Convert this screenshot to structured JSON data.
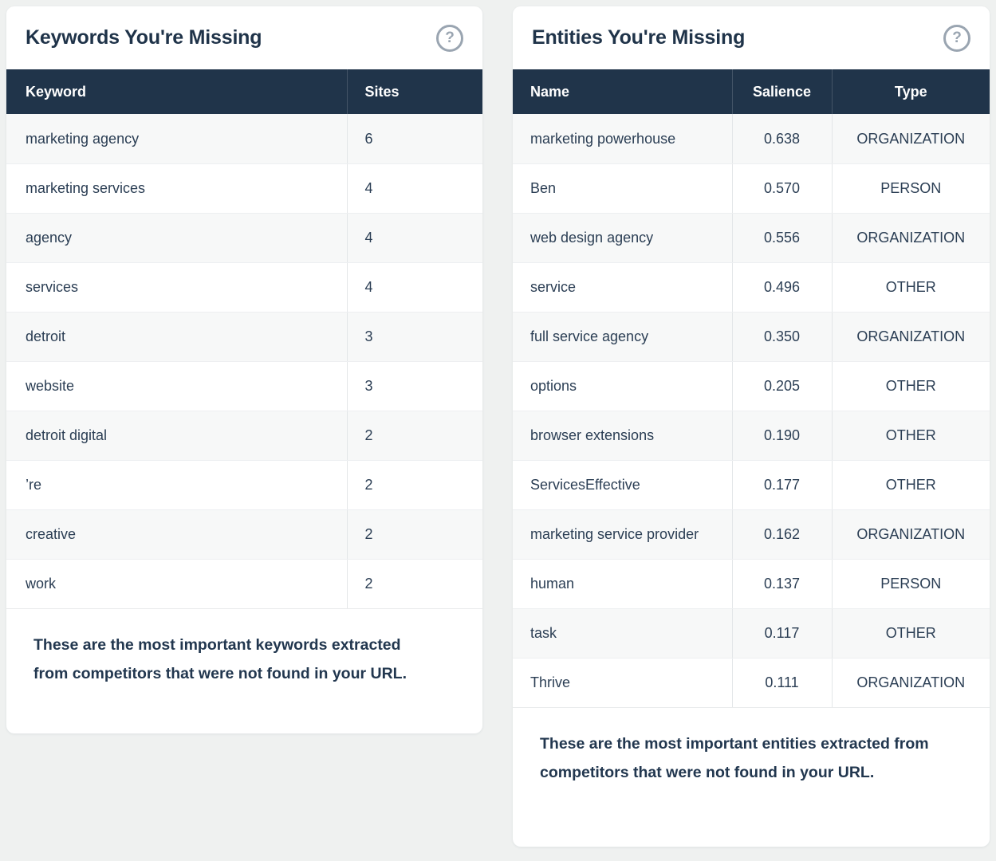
{
  "page": {
    "background_color": "#eff1f0",
    "header_bg_color": "#20344a",
    "title_color": "#1f3349",
    "help_glyph": "?"
  },
  "keywords_card": {
    "title": "Keywords You're Missing",
    "columns": {
      "keyword": "Keyword",
      "sites": "Sites"
    },
    "rows": [
      {
        "keyword": "marketing agency",
        "sites": "6"
      },
      {
        "keyword": "marketing services",
        "sites": "4"
      },
      {
        "keyword": "agency",
        "sites": "4"
      },
      {
        "keyword": "services",
        "sites": "4"
      },
      {
        "keyword": "detroit",
        "sites": "3"
      },
      {
        "keyword": "website",
        "sites": "3"
      },
      {
        "keyword": "detroit digital",
        "sites": "2"
      },
      {
        "keyword": "’re",
        "sites": "2"
      },
      {
        "keyword": "creative",
        "sites": "2"
      },
      {
        "keyword": "work",
        "sites": "2"
      }
    ],
    "footer": "These are the most important keywords extracted from competitors that were not found in your URL."
  },
  "entities_card": {
    "title": "Entities You're Missing",
    "columns": {
      "name": "Name",
      "salience": "Salience",
      "type": "Type"
    },
    "rows": [
      {
        "name": "marketing powerhouse",
        "salience": "0.638",
        "type": "ORGANIZATION"
      },
      {
        "name": "Ben",
        "salience": "0.570",
        "type": "PERSON"
      },
      {
        "name": "web design agency",
        "salience": "0.556",
        "type": "ORGANIZATION"
      },
      {
        "name": "service",
        "salience": "0.496",
        "type": "OTHER"
      },
      {
        "name": "full service agency",
        "salience": "0.350",
        "type": "ORGANIZATION"
      },
      {
        "name": "options",
        "salience": "0.205",
        "type": "OTHER"
      },
      {
        "name": "browser extensions",
        "salience": "0.190",
        "type": "OTHER"
      },
      {
        "name": "ServicesEffective",
        "salience": "0.177",
        "type": "OTHER"
      },
      {
        "name": "marketing service provider",
        "salience": "0.162",
        "type": "ORGANIZATION"
      },
      {
        "name": "human",
        "salience": "0.137",
        "type": "PERSON"
      },
      {
        "name": "task",
        "salience": "0.117",
        "type": "OTHER"
      },
      {
        "name": "Thrive",
        "salience": "0.111",
        "type": "ORGANIZATION"
      }
    ],
    "footer": "These are the most important entities extracted from competitors that were not found in your URL."
  }
}
